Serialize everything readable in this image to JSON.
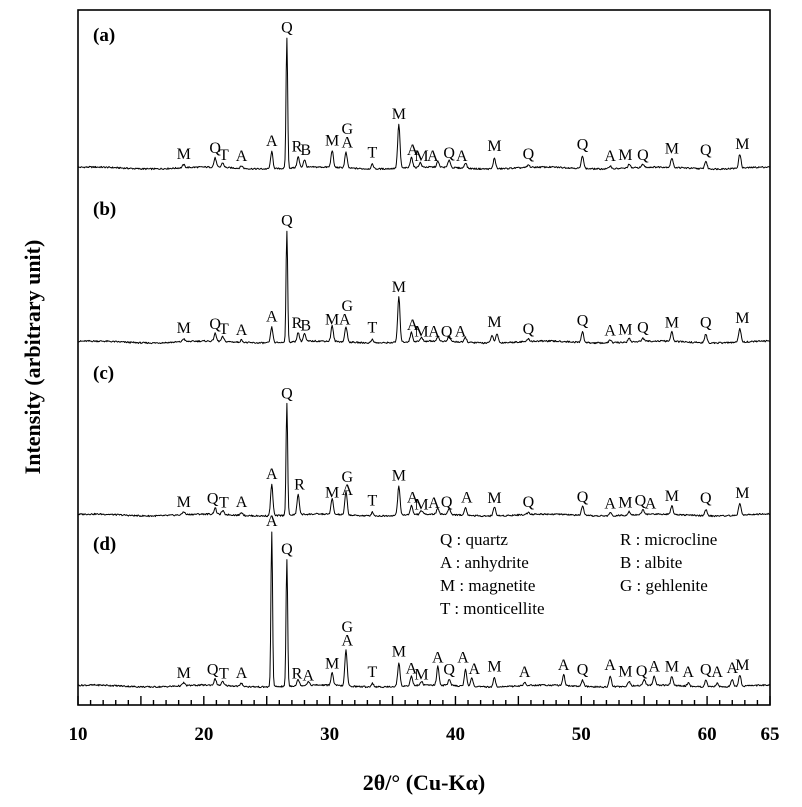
{
  "chart_data": {
    "type": "line",
    "xlabel": "2θ/° (Cu-Kα)",
    "ylabel": "Intensity (arbitrary unit)",
    "xlim": [
      10,
      65
    ],
    "x_ticks": [
      "10",
      "20",
      "30",
      "40",
      "50",
      "60",
      "65"
    ],
    "legend": {
      "entries": [
        "Q : quartz",
        "A : anhydrite",
        "M : magnetite",
        "T : monticellite",
        "R : microcline",
        "B : albite",
        "G : gehlenite"
      ]
    },
    "series": [
      {
        "name": "(a)",
        "baseline": 0,
        "peaks": [
          {
            "x": 18.4,
            "h": 0.1
          },
          {
            "x": 20.9,
            "h": 0.3
          },
          {
            "x": 21.5,
            "h": 0.15
          },
          {
            "x": 23.0,
            "h": 0.08
          },
          {
            "x": 25.4,
            "h": 0.55
          },
          {
            "x": 26.6,
            "h": 4.2
          },
          {
            "x": 27.5,
            "h": 0.35
          },
          {
            "x": 28.0,
            "h": 0.25
          },
          {
            "x": 30.2,
            "h": 0.55
          },
          {
            "x": 31.3,
            "h": 0.5
          },
          {
            "x": 33.4,
            "h": 0.15
          },
          {
            "x": 35.5,
            "h": 1.4
          },
          {
            "x": 36.5,
            "h": 0.35
          },
          {
            "x": 37.2,
            "h": 0.15
          },
          {
            "x": 38.6,
            "h": 0.18
          },
          {
            "x": 39.5,
            "h": 0.25
          },
          {
            "x": 40.8,
            "h": 0.18
          },
          {
            "x": 43.1,
            "h": 0.35
          },
          {
            "x": 45.8,
            "h": 0.08
          },
          {
            "x": 50.1,
            "h": 0.42
          },
          {
            "x": 52.3,
            "h": 0.1
          },
          {
            "x": 53.8,
            "h": 0.12
          },
          {
            "x": 54.9,
            "h": 0.1
          },
          {
            "x": 57.2,
            "h": 0.3
          },
          {
            "x": 59.9,
            "h": 0.25
          },
          {
            "x": 62.6,
            "h": 0.45
          }
        ],
        "labels": [
          {
            "t": "M",
            "x": 18.4,
            "h": 0.22
          },
          {
            "t": "Q",
            "x": 20.9,
            "h": 0.42
          },
          {
            "t": "T",
            "x": 21.6,
            "h": 0.2
          },
          {
            "t": "A",
            "x": 23.0,
            "h": 0.16
          },
          {
            "t": "A",
            "x": 25.4,
            "h": 0.65
          },
          {
            "t": "Q",
            "x": 26.6,
            "h": 4.3
          },
          {
            "t": "R",
            "x": 27.4,
            "h": 0.46
          },
          {
            "t": "B",
            "x": 28.1,
            "h": 0.36
          },
          {
            "t": "M",
            "x": 30.2,
            "h": 0.66
          },
          {
            "t": "A",
            "x": 31.4,
            "h": 0.6
          },
          {
            "t": "G",
            "x": 31.4,
            "h": 1.03
          },
          {
            "t": "T",
            "x": 33.4,
            "h": 0.28
          },
          {
            "t": "M",
            "x": 35.5,
            "h": 1.52
          },
          {
            "t": "A",
            "x": 36.6,
            "h": 0.36
          },
          {
            "t": "M",
            "x": 37.3,
            "h": 0.16
          },
          {
            "t": "A",
            "x": 38.2,
            "h": 0.16
          },
          {
            "t": "Q",
            "x": 39.5,
            "h": 0.26
          },
          {
            "t": "A",
            "x": 40.5,
            "h": 0.16
          },
          {
            "t": "M",
            "x": 43.1,
            "h": 0.48
          },
          {
            "t": "Q",
            "x": 45.8,
            "h": 0.22
          },
          {
            "t": "Q",
            "x": 50.1,
            "h": 0.54
          },
          {
            "t": "A",
            "x": 52.3,
            "h": 0.16
          },
          {
            "t": "M",
            "x": 53.5,
            "h": 0.2
          },
          {
            "t": "Q",
            "x": 54.9,
            "h": 0.2
          },
          {
            "t": "M",
            "x": 57.2,
            "h": 0.4
          },
          {
            "t": "Q",
            "x": 59.9,
            "h": 0.36
          },
          {
            "t": "M",
            "x": 62.8,
            "h": 0.55
          }
        ]
      },
      {
        "name": "(b)",
        "baseline": 0,
        "peaks": [
          {
            "x": 18.4,
            "h": 0.1
          },
          {
            "x": 20.9,
            "h": 0.25
          },
          {
            "x": 21.5,
            "h": 0.15
          },
          {
            "x": 23.0,
            "h": 0.08
          },
          {
            "x": 25.4,
            "h": 0.5
          },
          {
            "x": 26.6,
            "h": 3.6
          },
          {
            "x": 27.5,
            "h": 0.3
          },
          {
            "x": 28.0,
            "h": 0.25
          },
          {
            "x": 30.2,
            "h": 0.5
          },
          {
            "x": 31.3,
            "h": 0.5
          },
          {
            "x": 33.4,
            "h": 0.12
          },
          {
            "x": 35.5,
            "h": 1.45
          },
          {
            "x": 36.5,
            "h": 0.3
          },
          {
            "x": 37.3,
            "h": 0.12
          },
          {
            "x": 38.6,
            "h": 0.15
          },
          {
            "x": 39.5,
            "h": 0.18
          },
          {
            "x": 40.8,
            "h": 0.15
          },
          {
            "x": 42.9,
            "h": 0.25
          },
          {
            "x": 43.3,
            "h": 0.3
          },
          {
            "x": 45.8,
            "h": 0.08
          },
          {
            "x": 50.1,
            "h": 0.35
          },
          {
            "x": 52.3,
            "h": 0.1
          },
          {
            "x": 53.8,
            "h": 0.12
          },
          {
            "x": 54.9,
            "h": 0.1
          },
          {
            "x": 57.2,
            "h": 0.3
          },
          {
            "x": 59.9,
            "h": 0.28
          },
          {
            "x": 62.6,
            "h": 0.45
          }
        ],
        "labels": [
          {
            "t": "M",
            "x": 18.4,
            "h": 0.22
          },
          {
            "t": "Q",
            "x": 20.9,
            "h": 0.36
          },
          {
            "t": "T",
            "x": 21.6,
            "h": 0.2
          },
          {
            "t": "A",
            "x": 23.0,
            "h": 0.16
          },
          {
            "t": "A",
            "x": 25.4,
            "h": 0.6
          },
          {
            "t": "Q",
            "x": 26.6,
            "h": 3.7
          },
          {
            "t": "R",
            "x": 27.4,
            "h": 0.38
          },
          {
            "t": "B",
            "x": 28.1,
            "h": 0.3
          },
          {
            "t": "M",
            "x": 30.2,
            "h": 0.5
          },
          {
            "t": "A",
            "x": 31.2,
            "h": 0.5
          },
          {
            "t": "G",
            "x": 31.4,
            "h": 0.93
          },
          {
            "t": "T",
            "x": 33.4,
            "h": 0.25
          },
          {
            "t": "M",
            "x": 35.5,
            "h": 1.55
          },
          {
            "t": "A",
            "x": 36.6,
            "h": 0.32
          },
          {
            "t": "M",
            "x": 37.3,
            "h": 0.12
          },
          {
            "t": "A",
            "x": 38.3,
            "h": 0.12
          },
          {
            "t": "Q",
            "x": 39.3,
            "h": 0.12
          },
          {
            "t": "A",
            "x": 40.4,
            "h": 0.12
          },
          {
            "t": "M",
            "x": 43.1,
            "h": 0.42
          },
          {
            "t": "Q",
            "x": 45.8,
            "h": 0.2
          },
          {
            "t": "Q",
            "x": 50.1,
            "h": 0.46
          },
          {
            "t": "A",
            "x": 52.3,
            "h": 0.14
          },
          {
            "t": "M",
            "x": 53.5,
            "h": 0.18
          },
          {
            "t": "Q",
            "x": 54.9,
            "h": 0.24
          },
          {
            "t": "M",
            "x": 57.2,
            "h": 0.4
          },
          {
            "t": "Q",
            "x": 59.9,
            "h": 0.4
          },
          {
            "t": "M",
            "x": 62.8,
            "h": 0.55
          }
        ]
      },
      {
        "name": "(c)",
        "baseline": 0,
        "peaks": [
          {
            "x": 18.4,
            "h": 0.1
          },
          {
            "x": 20.9,
            "h": 0.2
          },
          {
            "x": 21.5,
            "h": 0.12
          },
          {
            "x": 23.0,
            "h": 0.1
          },
          {
            "x": 25.4,
            "h": 1.0
          },
          {
            "x": 26.6,
            "h": 3.6
          },
          {
            "x": 27.5,
            "h": 0.65
          },
          {
            "x": 30.2,
            "h": 0.5
          },
          {
            "x": 31.3,
            "h": 0.75
          },
          {
            "x": 33.4,
            "h": 0.12
          },
          {
            "x": 35.5,
            "h": 0.95
          },
          {
            "x": 36.5,
            "h": 0.3
          },
          {
            "x": 37.3,
            "h": 0.12
          },
          {
            "x": 38.6,
            "h": 0.2
          },
          {
            "x": 39.5,
            "h": 0.2
          },
          {
            "x": 40.8,
            "h": 0.25
          },
          {
            "x": 43.1,
            "h": 0.3
          },
          {
            "x": 45.8,
            "h": 0.08
          },
          {
            "x": 50.1,
            "h": 0.3
          },
          {
            "x": 52.3,
            "h": 0.1
          },
          {
            "x": 53.8,
            "h": 0.12
          },
          {
            "x": 54.9,
            "h": 0.15
          },
          {
            "x": 57.2,
            "h": 0.28
          },
          {
            "x": 59.9,
            "h": 0.2
          },
          {
            "x": 62.6,
            "h": 0.4
          }
        ],
        "labels": [
          {
            "t": "M",
            "x": 18.4,
            "h": 0.2
          },
          {
            "t": "Q",
            "x": 20.7,
            "h": 0.3
          },
          {
            "t": "T",
            "x": 21.6,
            "h": 0.18
          },
          {
            "t": "A",
            "x": 23.0,
            "h": 0.2
          },
          {
            "t": "A",
            "x": 25.4,
            "h": 1.1
          },
          {
            "t": "Q",
            "x": 26.6,
            "h": 3.7
          },
          {
            "t": "R",
            "x": 27.6,
            "h": 0.76
          },
          {
            "t": "M",
            "x": 30.2,
            "h": 0.5
          },
          {
            "t": "A",
            "x": 31.4,
            "h": 0.58
          },
          {
            "t": "G",
            "x": 31.4,
            "h": 1.0
          },
          {
            "t": "T",
            "x": 33.4,
            "h": 0.24
          },
          {
            "t": "M",
            "x": 35.5,
            "h": 1.05
          },
          {
            "t": "A",
            "x": 36.6,
            "h": 0.34
          },
          {
            "t": "M",
            "x": 37.3,
            "h": 0.12
          },
          {
            "t": "A",
            "x": 38.3,
            "h": 0.16
          },
          {
            "t": "Q",
            "x": 39.3,
            "h": 0.2
          },
          {
            "t": "A",
            "x": 40.9,
            "h": 0.34
          },
          {
            "t": "M",
            "x": 43.1,
            "h": 0.32
          },
          {
            "t": "Q",
            "x": 45.8,
            "h": 0.2
          },
          {
            "t": "Q",
            "x": 50.1,
            "h": 0.36
          },
          {
            "t": "A",
            "x": 52.3,
            "h": 0.14
          },
          {
            "t": "M",
            "x": 53.5,
            "h": 0.18
          },
          {
            "t": "Q",
            "x": 54.7,
            "h": 0.24
          },
          {
            "t": "A",
            "x": 55.5,
            "h": 0.14
          },
          {
            "t": "M",
            "x": 57.2,
            "h": 0.38
          },
          {
            "t": "Q",
            "x": 59.9,
            "h": 0.32
          },
          {
            "t": "M",
            "x": 62.8,
            "h": 0.48
          }
        ]
      },
      {
        "name": "(d)",
        "baseline": 0,
        "peaks": [
          {
            "x": 18.4,
            "h": 0.1
          },
          {
            "x": 20.9,
            "h": 0.2
          },
          {
            "x": 21.5,
            "h": 0.12
          },
          {
            "x": 23.0,
            "h": 0.1
          },
          {
            "x": 25.4,
            "h": 5.0
          },
          {
            "x": 26.6,
            "h": 4.1
          },
          {
            "x": 27.5,
            "h": 0.2
          },
          {
            "x": 28.3,
            "h": 0.12
          },
          {
            "x": 30.2,
            "h": 0.4
          },
          {
            "x": 31.3,
            "h": 1.15
          },
          {
            "x": 33.4,
            "h": 0.12
          },
          {
            "x": 35.5,
            "h": 0.75
          },
          {
            "x": 36.5,
            "h": 0.3
          },
          {
            "x": 37.3,
            "h": 0.12
          },
          {
            "x": 38.6,
            "h": 0.6
          },
          {
            "x": 39.5,
            "h": 0.2
          },
          {
            "x": 40.8,
            "h": 0.55
          },
          {
            "x": 41.3,
            "h": 0.3
          },
          {
            "x": 43.1,
            "h": 0.3
          },
          {
            "x": 45.5,
            "h": 0.1
          },
          {
            "x": 48.6,
            "h": 0.35
          },
          {
            "x": 50.1,
            "h": 0.2
          },
          {
            "x": 52.3,
            "h": 0.35
          },
          {
            "x": 53.8,
            "h": 0.15
          },
          {
            "x": 55.0,
            "h": 0.2
          },
          {
            "x": 55.8,
            "h": 0.3
          },
          {
            "x": 57.2,
            "h": 0.28
          },
          {
            "x": 58.5,
            "h": 0.1
          },
          {
            "x": 59.9,
            "h": 0.2
          },
          {
            "x": 60.8,
            "h": 0.12
          },
          {
            "x": 62.0,
            "h": 0.25
          },
          {
            "x": 62.6,
            "h": 0.35
          }
        ],
        "labels": [
          {
            "t": "M",
            "x": 18.4,
            "h": 0.2
          },
          {
            "t": "Q",
            "x": 20.7,
            "h": 0.3
          },
          {
            "t": "T",
            "x": 21.6,
            "h": 0.18
          },
          {
            "t": "A",
            "x": 23.0,
            "h": 0.2
          },
          {
            "t": "A",
            "x": 25.4,
            "h": 5.1
          },
          {
            "t": "Q",
            "x": 26.6,
            "h": 4.2
          },
          {
            "t": "R",
            "x": 27.4,
            "h": 0.18
          },
          {
            "t": "A",
            "x": 28.3,
            "h": 0.12
          },
          {
            "t": "M",
            "x": 30.2,
            "h": 0.5
          },
          {
            "t": "A",
            "x": 31.4,
            "h": 1.25
          },
          {
            "t": "G",
            "x": 31.4,
            "h": 1.68
          },
          {
            "t": "T",
            "x": 33.4,
            "h": 0.22
          },
          {
            "t": "M",
            "x": 35.5,
            "h": 0.88
          },
          {
            "t": "A",
            "x": 36.5,
            "h": 0.34
          },
          {
            "t": "M",
            "x": 37.3,
            "h": 0.14
          },
          {
            "t": "A",
            "x": 38.6,
            "h": 0.7
          },
          {
            "t": "Q",
            "x": 39.5,
            "h": 0.3
          },
          {
            "t": "A",
            "x": 40.6,
            "h": 0.7
          },
          {
            "t": "A",
            "x": 41.5,
            "h": 0.32
          },
          {
            "t": "M",
            "x": 43.1,
            "h": 0.4
          },
          {
            "t": "A",
            "x": 45.5,
            "h": 0.22
          },
          {
            "t": "A",
            "x": 48.6,
            "h": 0.45
          },
          {
            "t": "Q",
            "x": 50.1,
            "h": 0.3
          },
          {
            "t": "A",
            "x": 52.3,
            "h": 0.45
          },
          {
            "t": "M",
            "x": 53.5,
            "h": 0.24
          },
          {
            "t": "Q",
            "x": 54.8,
            "h": 0.26
          },
          {
            "t": "A",
            "x": 55.8,
            "h": 0.4
          },
          {
            "t": "M",
            "x": 57.2,
            "h": 0.4
          },
          {
            "t": "A",
            "x": 58.5,
            "h": 0.22
          },
          {
            "t": "Q",
            "x": 59.9,
            "h": 0.3
          },
          {
            "t": "A",
            "x": 60.8,
            "h": 0.22
          },
          {
            "t": "A",
            "x": 62.0,
            "h": 0.35
          },
          {
            "t": "M",
            "x": 62.8,
            "h": 0.45
          }
        ]
      }
    ]
  }
}
